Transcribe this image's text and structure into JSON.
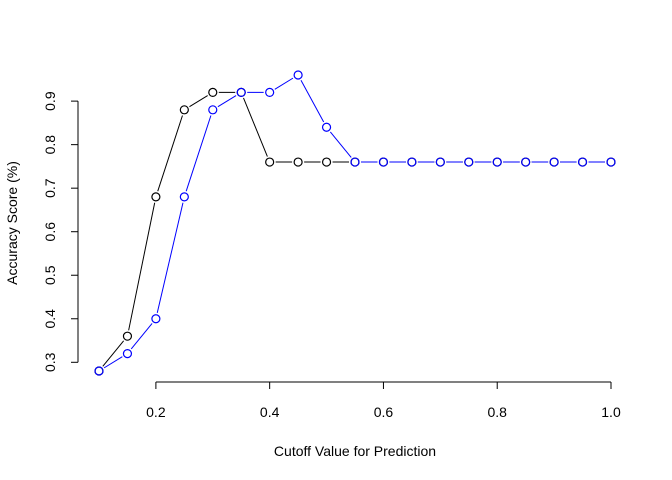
{
  "chart_data": {
    "type": "line",
    "title": "",
    "xlabel": "Cutoff Value for Prediction",
    "ylabel": "Accuracy Score (%)",
    "xlim": [
      0.1,
      1.0
    ],
    "ylim": [
      0.28,
      0.96
    ],
    "x_ticks": [
      0.2,
      0.4,
      0.6,
      0.8,
      1.0
    ],
    "x_tick_labels": [
      "0.2",
      "0.4",
      "0.6",
      "0.8",
      "1.0"
    ],
    "y_ticks": [
      0.3,
      0.4,
      0.5,
      0.6,
      0.7,
      0.8,
      0.9
    ],
    "y_tick_labels": [
      "0.3",
      "0.4",
      "0.5",
      "0.6",
      "0.7",
      "0.8",
      "0.9"
    ],
    "grid": false,
    "legend": "none",
    "x": [
      0.1,
      0.15,
      0.2,
      0.25,
      0.3,
      0.35,
      0.4,
      0.45,
      0.5,
      0.55,
      0.6,
      0.65,
      0.7,
      0.75,
      0.8,
      0.85,
      0.9,
      0.95,
      1.0
    ],
    "series": [
      {
        "color": "#000000",
        "values": [
          0.28,
          0.36,
          0.68,
          0.88,
          0.92,
          0.92,
          0.76,
          0.76,
          0.76,
          0.76,
          0.76,
          0.76,
          0.76,
          0.76,
          0.76,
          0.76,
          0.76,
          0.76,
          0.76
        ]
      },
      {
        "color": "#0000ff",
        "values": [
          0.28,
          0.32,
          0.4,
          0.68,
          0.88,
          0.92,
          0.92,
          0.96,
          0.84,
          0.76,
          0.76,
          0.76,
          0.76,
          0.76,
          0.76,
          0.76,
          0.76,
          0.76,
          0.76
        ]
      }
    ]
  }
}
